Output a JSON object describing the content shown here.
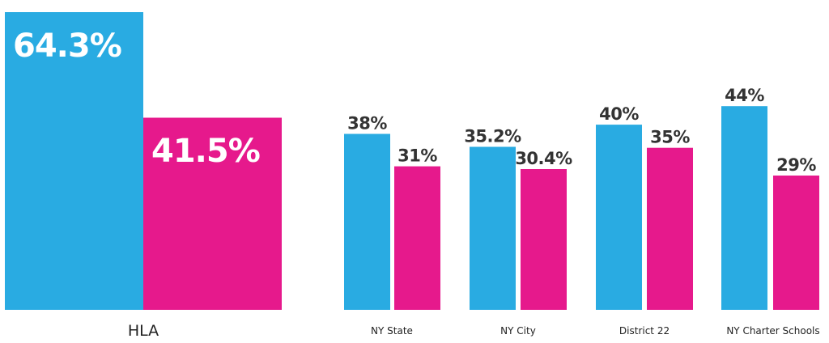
{
  "chart_data": {
    "type": "bar",
    "categories": [
      "HLA",
      "NY State",
      "NY City",
      "District 22",
      "NY Charter Schools"
    ],
    "series": [
      {
        "values": [
          64.3,
          38,
          35.2,
          40,
          44
        ]
      },
      {
        "values": [
          41.5,
          31,
          30.4,
          35,
          29
        ]
      }
    ],
    "value_labels": [
      [
        "64.3%",
        "38%",
        "35.2%",
        "40%",
        "44%"
      ],
      [
        "41.5%",
        "31%",
        "30.4%",
        "35%",
        "29%"
      ]
    ],
    "title": "",
    "xlabel": "",
    "ylabel": "",
    "ylim": [
      0,
      64.3
    ],
    "grid": false,
    "legend": "none",
    "colors": [
      "#29abe2",
      "#e6198c"
    ],
    "label_color": "#333333",
    "inside_label_color": "#ffffff"
  }
}
